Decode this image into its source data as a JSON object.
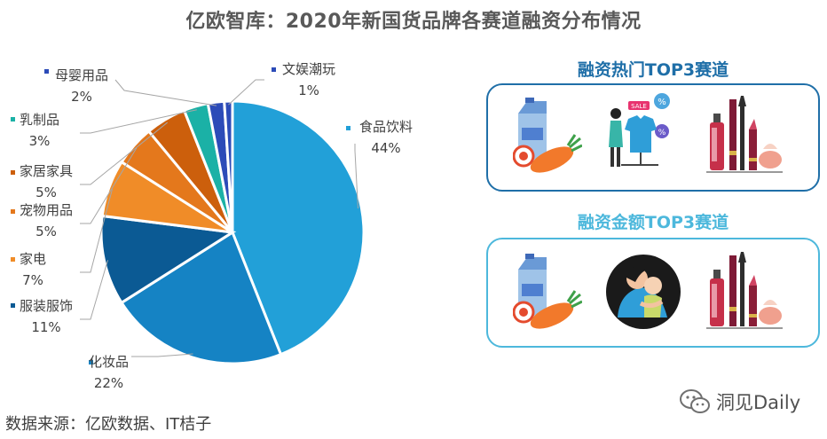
{
  "title": "亿欧智库：2020年新国货品牌各赛道融资分布情况",
  "chart_data": {
    "type": "pie",
    "title": "亿欧智库：2020年新国货品牌各赛道融资分布情况",
    "slices": [
      {
        "label": "食品饮料",
        "pct_label": "44%",
        "value": 44,
        "color": "#22A0D8"
      },
      {
        "label": "化妆品",
        "pct_label": "22%",
        "value": 22,
        "color": "#1583C4"
      },
      {
        "label": "服装服饰",
        "pct_label": "11%",
        "value": 11,
        "color": "#0B5A94"
      },
      {
        "label": "家电",
        "pct_label": "7%",
        "value": 7,
        "color": "#F08C28"
      },
      {
        "label": "宠物用品",
        "pct_label": "5%",
        "value": 5,
        "color": "#E4781C"
      },
      {
        "label": "家居家具",
        "pct_label": "5%",
        "value": 5,
        "color": "#CC5F0C"
      },
      {
        "label": "乳制品",
        "pct_label": "3%",
        "value": 3,
        "color": "#1BB1A6"
      },
      {
        "label": "母婴用品",
        "pct_label": "2%",
        "value": 2,
        "color": "#2C4BB8"
      },
      {
        "label": "文娱潮玩",
        "pct_label": "1%",
        "value": 1,
        "color": "#2C4BB8"
      }
    ]
  },
  "panels": {
    "hot": {
      "title": "融资热门TOP3赛道",
      "color": "#1F6FA8",
      "sale_tag": "SALE",
      "pct_badge": "%"
    },
    "amount": {
      "title": "融资金额TOP3赛道",
      "color": "#4DB8DC"
    }
  },
  "source": "数据来源：亿欧数据、IT桔子",
  "watermark": "洞见Daily"
}
